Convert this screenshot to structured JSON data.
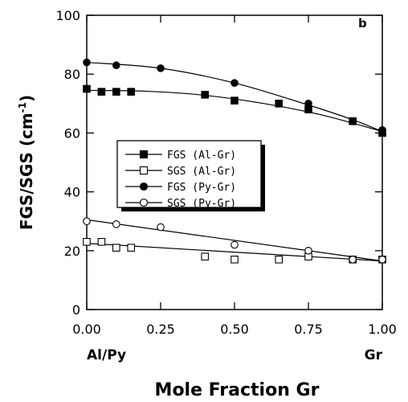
{
  "chart_data": {
    "type": "scatter",
    "panel_label": "b",
    "ylabel": "FGS/SGS (cm",
    "ylabel_sup": "-1",
    "ylabel_close": ")",
    "xlabel": "Mole Fraction Gr",
    "x_left_label": "Al/Py",
    "x_right_label": "Gr",
    "xlim": [
      0,
      1
    ],
    "ylim": [
      0,
      100
    ],
    "x_ticks": [
      "0.00",
      "0.25",
      "0.50",
      "0.75",
      "1.00"
    ],
    "y_ticks": [
      "0",
      "20",
      "40",
      "60",
      "80",
      "100"
    ],
    "legend_position": "center-left",
    "series": [
      {
        "name": "FGS  (Al-Gr)",
        "marker": "square-filled",
        "x": [
          0.0,
          0.05,
          0.1,
          0.15,
          0.4,
          0.5,
          0.65,
          0.75,
          0.9,
          1.0
        ],
        "values": [
          75,
          74,
          74,
          74,
          73,
          71,
          70,
          68,
          64,
          60
        ],
        "fit": [
          [
            0,
            74.5
          ],
          [
            0.2,
            74.2
          ],
          [
            0.4,
            72.8
          ],
          [
            0.6,
            70.0
          ],
          [
            0.8,
            66.0
          ],
          [
            1.0,
            60.5
          ]
        ]
      },
      {
        "name": "SGS  (Al-Gr)",
        "marker": "square-open",
        "x": [
          0.0,
          0.05,
          0.1,
          0.15,
          0.4,
          0.5,
          0.65,
          0.75,
          0.9,
          1.0
        ],
        "values": [
          23,
          23,
          21,
          21,
          18,
          17,
          17,
          18,
          17,
          17
        ],
        "fit": [
          [
            0,
            22.5
          ],
          [
            1.0,
            16.5
          ]
        ]
      },
      {
        "name": "FGS  (Py-Gr)",
        "marker": "circle-filled",
        "x": [
          0.0,
          0.1,
          0.25,
          0.5,
          0.75,
          0.9,
          1.0
        ],
        "values": [
          84,
          83,
          82,
          77,
          70,
          64,
          61
        ],
        "fit": [
          [
            0,
            84
          ],
          [
            0.25,
            82
          ],
          [
            0.5,
            77
          ],
          [
            0.75,
            69.5
          ],
          [
            0.9,
            64.5
          ],
          [
            1.0,
            60.5
          ]
        ]
      },
      {
        "name": "SGS  (Py-Gr)",
        "marker": "circle-open",
        "x": [
          0.0,
          0.1,
          0.25,
          0.5,
          0.75,
          0.9,
          1.0
        ],
        "values": [
          30,
          29,
          28,
          22,
          20,
          17,
          17
        ],
        "fit": [
          [
            0,
            30.5
          ],
          [
            1.0,
            16.5
          ]
        ]
      }
    ]
  }
}
